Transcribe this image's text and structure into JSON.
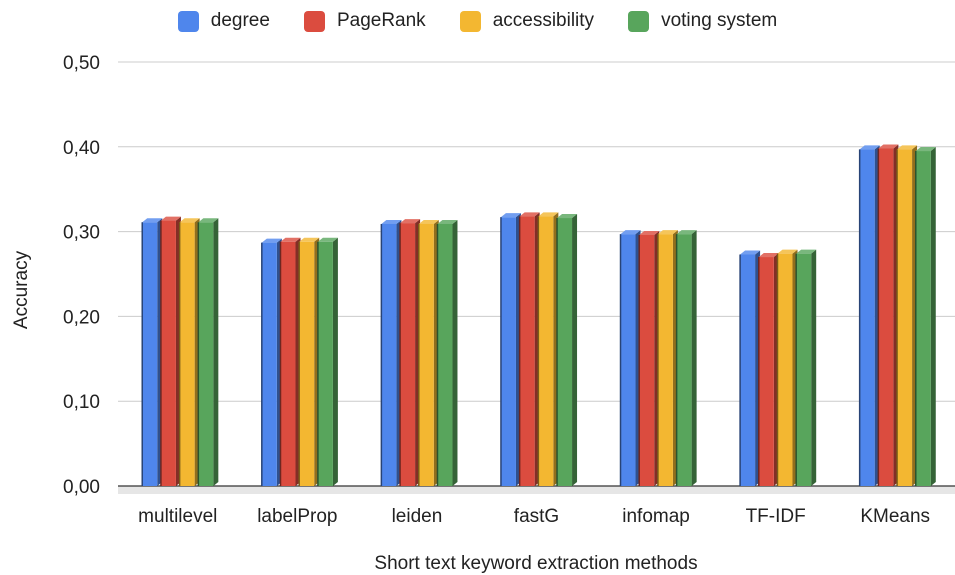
{
  "chart_data": {
    "type": "bar",
    "title": "",
    "xlabel": "Short text keyword extraction methods",
    "ylabel": "Accuracy",
    "ylim": [
      0,
      0.5
    ],
    "yticks": [
      "0,00",
      "0,10",
      "0,20",
      "0,30",
      "0,40",
      "0,50"
    ],
    "grid": true,
    "legend_position": "top",
    "categories": [
      "multilevel",
      "labelProp",
      "leiden",
      "fastG",
      "infomap",
      "TF-IDF",
      "KMeans"
    ],
    "series": [
      {
        "name": "degree",
        "color": "#4f86ec",
        "values": [
          0.311,
          0.287,
          0.309,
          0.317,
          0.297,
          0.273,
          0.397
        ]
      },
      {
        "name": "PageRank",
        "color": "#db4c3f",
        "values": [
          0.313,
          0.288,
          0.31,
          0.318,
          0.296,
          0.27,
          0.398
        ]
      },
      {
        "name": "accessibility",
        "color": "#f3b731",
        "values": [
          0.311,
          0.288,
          0.309,
          0.318,
          0.297,
          0.274,
          0.397
        ]
      },
      {
        "name": "voting system",
        "color": "#58a55c",
        "values": [
          0.311,
          0.288,
          0.309,
          0.316,
          0.297,
          0.274,
          0.395
        ]
      }
    ]
  }
}
